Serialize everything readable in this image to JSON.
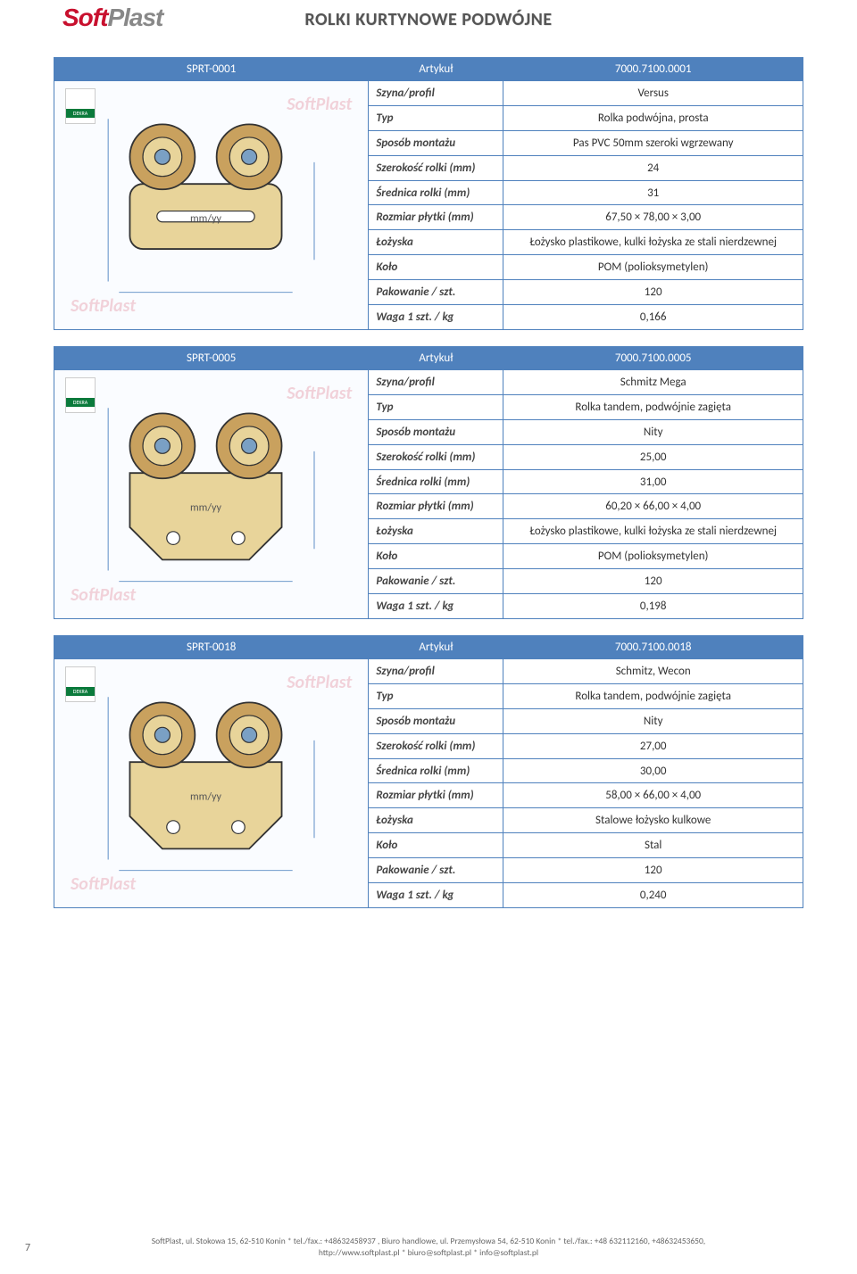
{
  "logo": {
    "part1": "Soft",
    "part2": "Plast"
  },
  "page_title": "ROLKI KURTYNOWE PODWÓJNE",
  "page_number": "7",
  "colors": {
    "header_bg": "#4f81bd",
    "header_fg": "#ffffff",
    "border": "#4f81bd",
    "logo_red": "#c8102e",
    "logo_grey": "#888888"
  },
  "spec_labels": {
    "szyna": "Szyna/profil",
    "typ": "Typ",
    "sposob": "Sposób montażu",
    "szer": "Szerokość rolki (mm)",
    "sred": "Średnica rolki (mm)",
    "rozmiar": "Rozmiar płytki (mm)",
    "lozyska": "Łożyska",
    "kolo": "Koło",
    "pakowanie": "Pakowanie / szt.",
    "waga": "Waga 1 szt. / kg"
  },
  "col_artykul": "Artykuł",
  "products": [
    {
      "code": "SPRT-0001",
      "artykul": "7000.7100.0001",
      "szyna": "Versus",
      "typ": "Rolka podwójna, prosta",
      "sposob": "Pas PVC 50mm szeroki wgrzewany",
      "szer": "24",
      "sred": "31",
      "rozmiar": "67,50 × 78,00 × 3,00",
      "lozyska": "Łożysko plastikowe, kulki łożyska ze stali nierdzewnej",
      "kolo": "POM (polioksymetylen)",
      "pakowanie": "120",
      "waga": "0,166"
    },
    {
      "code": "SPRT-0005",
      "artykul": "7000.7100.0005",
      "szyna": "Schmitz Mega",
      "typ": "Rolka tandem, podwójnie zagięta",
      "sposob": "Nity",
      "szer": "25,00",
      "sred": "31,00",
      "rozmiar": "60,20 × 66,00 × 4,00",
      "lozyska": "Łożysko plastikowe, kulki łożyska ze stali nierdzewnej",
      "kolo": "POM (polioksymetylen)",
      "pakowanie": "120",
      "waga": "0,198"
    },
    {
      "code": "SPRT-0018",
      "artykul": "7000.7100.0018",
      "szyna": "Schmitz, Wecon",
      "typ": "Rolka tandem, podwójnie zagięta",
      "sposob": "Nity",
      "szer": "27,00",
      "sred": "30,00",
      "rozmiar": "58,00 × 66,00 × 4,00",
      "lozyska": "Stalowe łożysko kulkowe",
      "kolo": "Stal",
      "pakowanie": "120",
      "waga": "0,240"
    }
  ],
  "footer": {
    "line1": "SoftPlast, ul. Stokowa 15, 62-510 Konin * tel./fax.: +48632458937 , Biuro handlowe, ul. Przemysłowa 54, 62-510 Konin * tel./fax.: +48 632112160, +48632453650,",
    "line2": "http://www.softplast.pl * biuro@softplast.pl * info@softplast.pl"
  }
}
